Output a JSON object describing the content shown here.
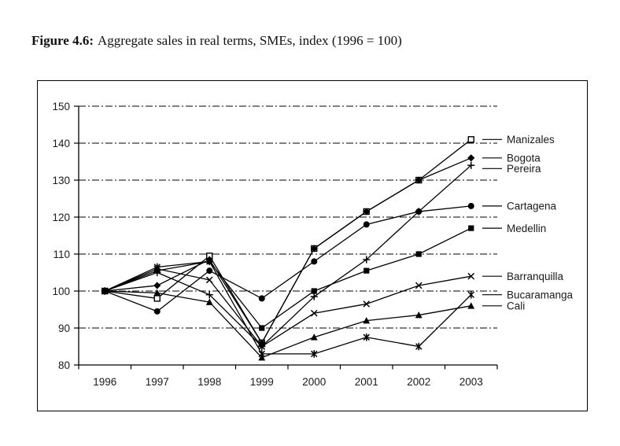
{
  "figure": {
    "label": "Figure 4.6:",
    "caption": "Aggregate sales in real terms, SMEs, index (1996 = 100)"
  },
  "chart_data": {
    "type": "line",
    "title": "Aggregate sales in real terms, SMEs, index (1996 = 100)",
    "x": [
      "1996",
      "1997",
      "1998",
      "1999",
      "2000",
      "2001",
      "2002",
      "2003"
    ],
    "series": [
      {
        "name": "Manizales",
        "marker": "open-square",
        "values": [
          100,
          98,
          109.5,
          86,
          111.5,
          121.5,
          130,
          141
        ]
      },
      {
        "name": "Bogota",
        "marker": "diamond",
        "values": [
          100,
          101.5,
          108.5,
          86,
          111.5,
          121.5,
          130,
          136
        ]
      },
      {
        "name": "Pereira",
        "marker": "plus",
        "values": [
          100,
          105,
          99,
          85,
          98.5,
          108.5,
          121.5,
          134
        ]
      },
      {
        "name": "Cartagena",
        "marker": "circle",
        "values": [
          100,
          94.5,
          105.5,
          98,
          108,
          118,
          121.5,
          123
        ]
      },
      {
        "name": "Medellin",
        "marker": "square",
        "values": [
          100,
          105.5,
          108,
          90,
          100,
          105.5,
          110,
          117
        ]
      },
      {
        "name": "Barranquilla",
        "marker": "x",
        "values": [
          100,
          106,
          103,
          85,
          94,
          96.5,
          101.5,
          104
        ]
      },
      {
        "name": "Bucaramanga",
        "marker": "asterisk",
        "values": [
          100,
          106.5,
          108,
          83,
          83,
          87.5,
          85,
          99
        ]
      },
      {
        "name": "Cali",
        "marker": "triangle",
        "values": [
          100,
          99.5,
          97,
          82,
          87.5,
          92,
          93.5,
          96
        ]
      }
    ],
    "xlabel": "",
    "ylabel": "",
    "ylim": [
      80,
      150
    ],
    "yticks": [
      80,
      90,
      100,
      110,
      120,
      130,
      140,
      150
    ],
    "grid": "horizontal-dash-dot",
    "legend_position": "right-at-line-ends",
    "line_color": "#000000",
    "background_color": "#ffffff"
  }
}
